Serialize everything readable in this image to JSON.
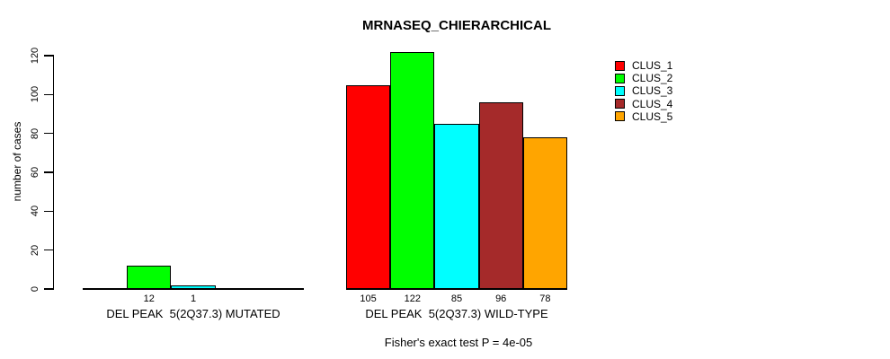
{
  "chart_data": {
    "type": "bar",
    "title": "MRNASEQ_CHIERARCHICAL",
    "ylabel": "number of cases",
    "xlabel": "",
    "ylim": [
      0,
      120
    ],
    "yticks": [
      0,
      20,
      40,
      60,
      80,
      100,
      120
    ],
    "grid": false,
    "legend_position": "top-right",
    "background_color": "#ffffff",
    "bar_border_color": "#000000",
    "categories": [
      "DEL PEAK  5(2Q37.3) MUTATED",
      "DEL PEAK  5(2Q37.3) WILD-TYPE"
    ],
    "series": [
      {
        "name": "CLUS_1",
        "color": "#ff0000",
        "values": [
          0,
          105
        ]
      },
      {
        "name": "CLUS_2",
        "color": "#00ff00",
        "values": [
          12,
          122
        ]
      },
      {
        "name": "CLUS_3",
        "color": "#00ffff",
        "values": [
          1,
          85
        ]
      },
      {
        "name": "CLUS_4",
        "color": "#a52a2a",
        "values": [
          0,
          96
        ]
      },
      {
        "name": "CLUS_5",
        "color": "#ffa500",
        "values": [
          0,
          78
        ]
      }
    ],
    "bar_value_labels": [
      [
        "",
        "12",
        "1",
        "",
        ""
      ],
      [
        "105",
        "122",
        "85",
        "96",
        "78"
      ]
    ],
    "annotation": "Fisher's exact test P = 4e-05"
  }
}
